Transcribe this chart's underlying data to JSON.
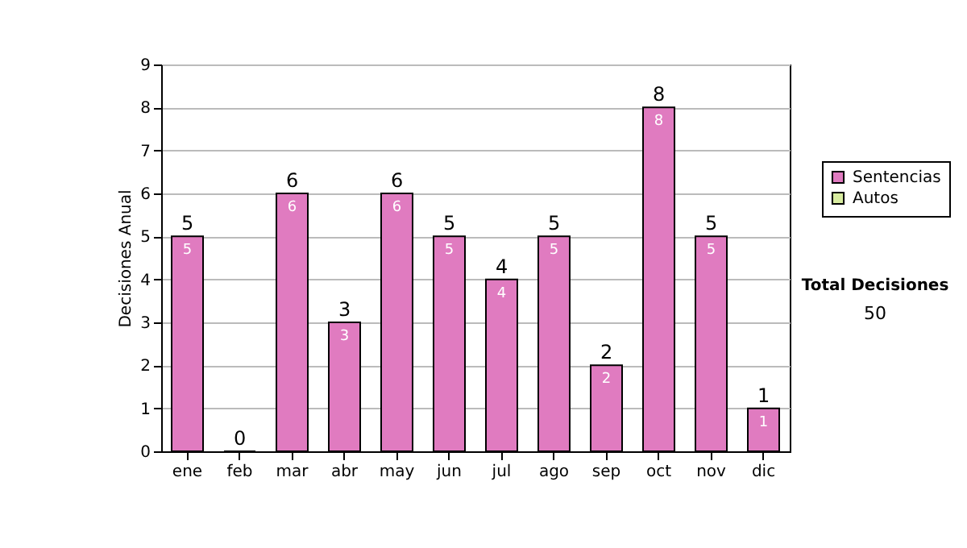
{
  "chart_data": {
    "type": "bar",
    "stacked": true,
    "ylabel": "Decisiones Anual",
    "categories": [
      "ene",
      "feb",
      "mar",
      "abr",
      "may",
      "jun",
      "jul",
      "ago",
      "sep",
      "oct",
      "nov",
      "dic"
    ],
    "series": [
      {
        "name": "Sentencias",
        "color": "#e07bc0",
        "values": [
          5,
          0,
          6,
          3,
          6,
          5,
          4,
          5,
          2,
          8,
          5,
          1
        ],
        "value_labels": [
          "5",
          null,
          "6",
          "3",
          "6",
          "5",
          "4",
          "5",
          "2",
          "8",
          "5",
          "1"
        ]
      },
      {
        "name": "Autos",
        "color": "#d8eca0",
        "values": [
          0,
          0,
          0,
          0,
          0,
          0,
          0,
          0,
          0,
          0,
          0,
          0
        ]
      }
    ],
    "totals": [
      "5",
      "0",
      "6",
      "3",
      "6",
      "5",
      "4",
      "5",
      "2",
      "8",
      "5",
      "1"
    ],
    "ylim": [
      0,
      9
    ],
    "yticks": [
      0,
      1,
      2,
      3,
      4,
      5,
      6,
      7,
      8,
      9
    ],
    "grid": "y",
    "legend": "right",
    "annotations": [
      "Total Decisiones",
      "50"
    ]
  }
}
